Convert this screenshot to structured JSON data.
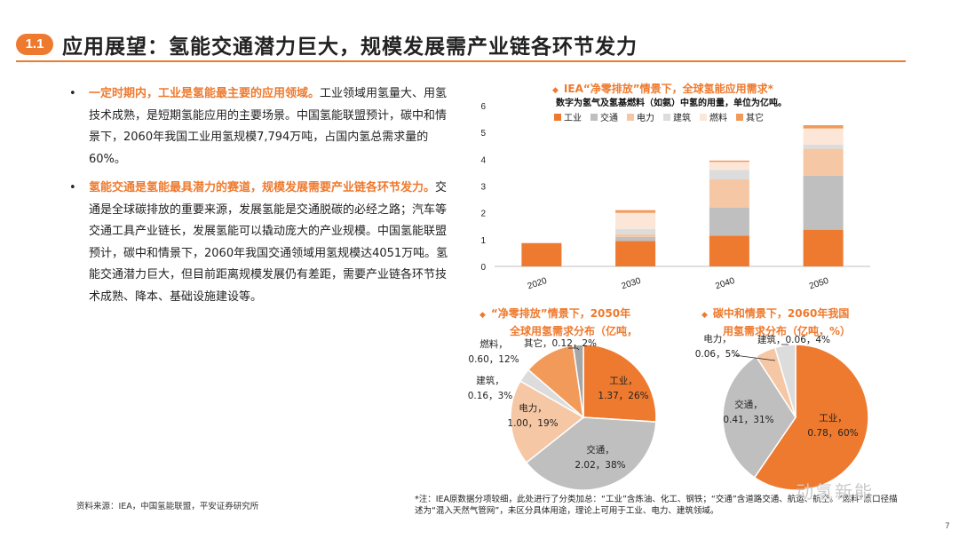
{
  "header": {
    "badge": "1.1",
    "title": "应用展望：氢能交通潜力巨大，规模发展需产业链各环节发力"
  },
  "bullets": [
    {
      "highlight": "一定时期内，工业是氢能最主要的应用领域。",
      "text": "工业领域用氢量大、用氢技术成熟，是短期氢能应用的主要场景。中国氢能联盟预计，碳中和情景下，2060年我国工业用氢规模7,794万吨，占国内氢总需求量的60%。"
    },
    {
      "highlight": "氢能交通是氢能最具潜力的赛道，规模发展需要产业链各环节发力。",
      "text": "交通是全球碳排放的重要来源，发展氢能是交通脱碳的必经之路；汽车等交通工具产业链长，发展氢能可以撬动庞大的产业规模。中国氢能联盟预计，碳中和情景下，2060年我国交通领域用氢规模达4051万吨。氢能交通潜力巨大，但目前距离规模发展仍有差距，需要产业链各环节技术成熟、降本、基础设施建设等。"
    }
  ],
  "source": "资料来源：IEA，中国氢能联盟，平安证券研究所",
  "note": "*注：IEA原数据分项较细，此处进行了分类加总：“工业”含炼油、化工、钢铁；“交通”含道路交通、航运、航空。“燃料”原口径描述为“混入天然气管网”，未区分具体用途，理论上可用于工业、电力、建筑领域。",
  "watermark": "动氢新能",
  "page_number": "7",
  "colors": {
    "accent": "#ee7a2f",
    "industry": "#ee7a2f",
    "transport": "#bfbfbf",
    "power": "#f6c7a4",
    "building": "#dcdcdc",
    "fuel": "#fbe6d8",
    "other": "#f29a5a"
  },
  "chart_data": [
    {
      "type": "bar",
      "stacked": true,
      "title": "IEA“净零排放”情景下，全球氢能应用需求*",
      "subtitle": "数字为氢气及氢基燃料（如氨）中氢的用量，单位为亿吨。",
      "categories": [
        "2020",
        "2030",
        "2040",
        "2050"
      ],
      "series": [
        {
          "name": "工业",
          "values": [
            0.87,
            0.95,
            1.15,
            1.37
          ],
          "color": "#ee7a2f"
        },
        {
          "name": "交通",
          "values": [
            0,
            0.15,
            1.05,
            2.02
          ],
          "color": "#bfbfbf"
        },
        {
          "name": "电力",
          "values": [
            0,
            0.1,
            1.05,
            1.0
          ],
          "color": "#f6c7a4"
        },
        {
          "name": "建筑",
          "values": [
            0,
            0.2,
            0.35,
            0.16
          ],
          "color": "#dcdcdc"
        },
        {
          "name": "燃料",
          "values": [
            0,
            0.6,
            0.3,
            0.6
          ],
          "color": "#fbe6d8"
        },
        {
          "name": "其它",
          "values": [
            0,
            0.1,
            0.05,
            0.12
          ],
          "color": "#f29a5a"
        }
      ],
      "ylim": [
        0,
        6
      ],
      "yticks": [
        "0",
        "1",
        "2",
        "3",
        "4",
        "5",
        "6"
      ],
      "legend": "top"
    },
    {
      "type": "pie",
      "title": [
        "“净零排放”情景下，2050年",
        "全球用氢需求分布（亿吨，"
      ],
      "slices": [
        {
          "name": "工业",
          "value": 1.37,
          "pct": 26,
          "label": [
            "工业，",
            "1.37，26%"
          ],
          "color": "#ee7a2f"
        },
        {
          "name": "交通",
          "value": 2.02,
          "pct": 38,
          "label": [
            "交通，",
            "2.02，38%"
          ],
          "color": "#bfbfbf"
        },
        {
          "name": "电力",
          "value": 1.0,
          "pct": 19,
          "label": [
            "电力，",
            "1.00，19%"
          ],
          "color": "#f6c7a4"
        },
        {
          "name": "建筑",
          "value": 0.16,
          "pct": 3,
          "label": [
            "建筑，",
            "0.16，3%"
          ],
          "color": "#dcdcdc"
        },
        {
          "name": "燃料",
          "value": 0.6,
          "pct": 12,
          "label": [
            "燃料，",
            "0.60，12%"
          ],
          "color": "#f29a5a"
        },
        {
          "name": "其它",
          "value": 0.12,
          "pct": 2,
          "label": [
            "其它，0.12，2%"
          ],
          "color": "#a6a6a6"
        }
      ]
    },
    {
      "type": "pie",
      "title": [
        "碳中和情景下，2060年我国",
        "用氢需求分布（亿吨，%）"
      ],
      "slices": [
        {
          "name": "工业",
          "value": 0.78,
          "pct": 60,
          "label": [
            "工业，",
            "0.78，60%"
          ],
          "color": "#ee7a2f"
        },
        {
          "name": "交通",
          "value": 0.41,
          "pct": 31,
          "label": [
            "交通，",
            "0.41，31%"
          ],
          "color": "#bfbfbf"
        },
        {
          "name": "电力",
          "value": 0.06,
          "pct": 5,
          "label": [
            "电力，",
            "0.06，5%"
          ],
          "color": "#f6c7a4"
        },
        {
          "name": "建筑",
          "value": 0.06,
          "pct": 4,
          "label": [
            "建筑，0.06，4%"
          ],
          "color": "#dcdcdc"
        }
      ]
    }
  ]
}
